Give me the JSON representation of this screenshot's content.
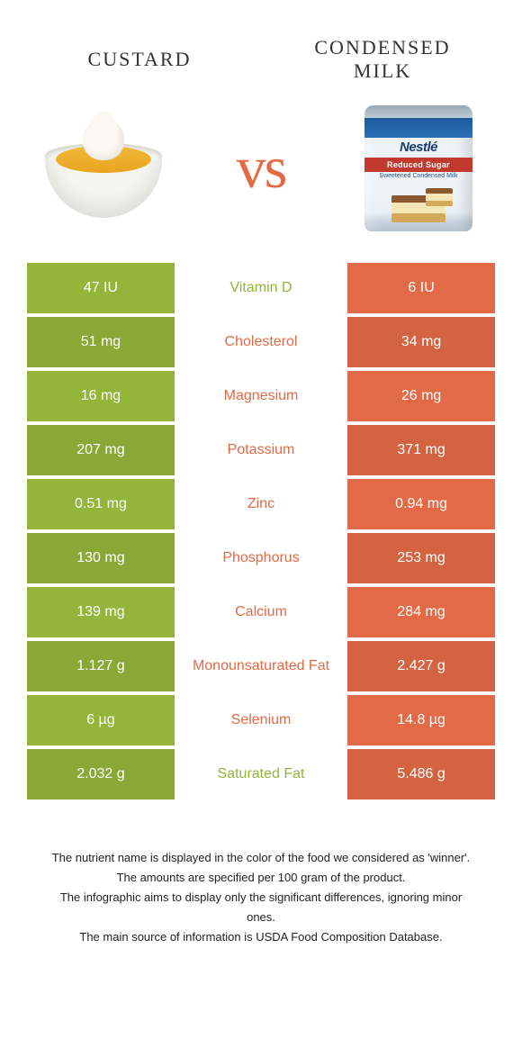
{
  "header": {
    "left_title": "Custard",
    "right_title": "Condensed Milk",
    "vs_label": "vs"
  },
  "can": {
    "brand": "Nestlé",
    "banner": "Reduced Sugar",
    "subtitle": "Sweetened Condensed Milk"
  },
  "colors": {
    "green": "#93b53a",
    "orange": "#e36a46",
    "row_alt_overlay": "rgba(0,0,0,0.06)"
  },
  "rows": [
    {
      "nutrient": "Vitamin D",
      "left": "47 IU",
      "right": "6 IU",
      "label_color": "#93b53a"
    },
    {
      "nutrient": "Cholesterol",
      "left": "51 mg",
      "right": "34 mg",
      "label_color": "#e36a46"
    },
    {
      "nutrient": "Magnesium",
      "left": "16 mg",
      "right": "26 mg",
      "label_color": "#e36a46"
    },
    {
      "nutrient": "Potassium",
      "left": "207 mg",
      "right": "371 mg",
      "label_color": "#e36a46"
    },
    {
      "nutrient": "Zinc",
      "left": "0.51 mg",
      "right": "0.94 mg",
      "label_color": "#e36a46"
    },
    {
      "nutrient": "Phosphorus",
      "left": "130 mg",
      "right": "253 mg",
      "label_color": "#e36a46"
    },
    {
      "nutrient": "Calcium",
      "left": "139 mg",
      "right": "284 mg",
      "label_color": "#e36a46"
    },
    {
      "nutrient": "Monounsaturated Fat",
      "left": "1.127 g",
      "right": "2.427 g",
      "label_color": "#e36a46"
    },
    {
      "nutrient": "Selenium",
      "left": "6 µg",
      "right": "14.8 µg",
      "label_color": "#e36a46"
    },
    {
      "nutrient": "Saturated Fat",
      "left": "2.032 g",
      "right": "5.486 g",
      "label_color": "#93b53a"
    }
  ],
  "footer": {
    "line1": "The nutrient name is displayed in the color of the food we considered as 'winner'.",
    "line2": "The amounts are specified per 100 gram of the product.",
    "line3": "The infographic aims to display only the significant differences, ignoring minor ones.",
    "line4": "The main source of information is USDA Food Composition Database."
  }
}
